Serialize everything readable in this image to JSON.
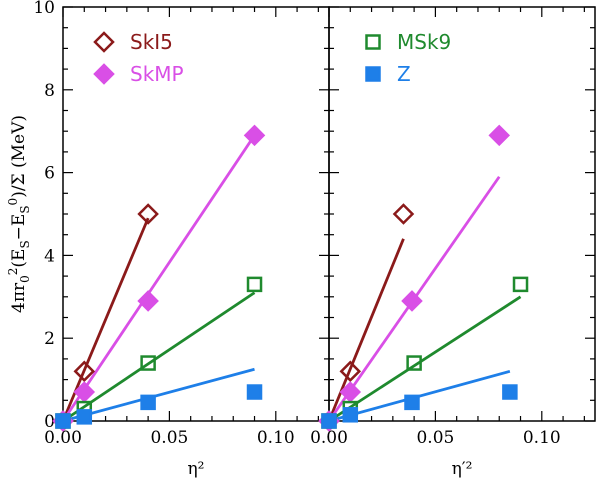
{
  "chart_data": [
    {
      "type": "scatter",
      "panel": "left",
      "xlabel": "η²",
      "ylabel": "4πr₀²(E_S−E_S⁰)/Σ (MeV)",
      "xlim": [
        0.0,
        0.125
      ],
      "ylim": [
        0,
        10
      ],
      "x_ticks": [
        0.0,
        0.05,
        0.1
      ],
      "x_tick_labels": [
        "0.00",
        "0.05",
        "0.10"
      ],
      "y_ticks": [
        0,
        2,
        4,
        6,
        8,
        10
      ],
      "y_tick_labels": [
        "0",
        "2",
        "4",
        "6",
        "8",
        "10"
      ],
      "series": [
        {
          "name": "SkI5",
          "color": "#8b1a1a",
          "marker": "diamond-open",
          "points": [
            [
              0.0,
              0.0
            ],
            [
              0.01,
              1.2
            ],
            [
              0.04,
              5.0
            ]
          ],
          "fit": [
            [
              0.0,
              0.0
            ],
            [
              0.04,
              4.9
            ]
          ]
        },
        {
          "name": "SkMP",
          "color": "#d94fe6",
          "marker": "diamond-filled",
          "points": [
            [
              0.0,
              0.0
            ],
            [
              0.01,
              0.7
            ],
            [
              0.04,
              2.9
            ],
            [
              0.09,
              6.9
            ]
          ],
          "fit": [
            [
              0.0,
              0.0
            ],
            [
              0.09,
              6.9
            ]
          ]
        },
        {
          "name": "MSk9",
          "color": "#1f8a2e",
          "marker": "square-open",
          "points": [
            [
              0.0,
              0.0
            ],
            [
              0.01,
              0.3
            ],
            [
              0.04,
              1.4
            ],
            [
              0.09,
              3.3
            ]
          ],
          "fit": [
            [
              0.0,
              0.0
            ],
            [
              0.09,
              3.1
            ]
          ]
        },
        {
          "name": "Z",
          "color": "#1e7fe8",
          "marker": "square-filled",
          "points": [
            [
              0.0,
              0.0
            ],
            [
              0.01,
              0.1
            ],
            [
              0.04,
              0.45
            ],
            [
              0.09,
              0.7
            ]
          ],
          "fit": [
            [
              0.0,
              0.0
            ],
            [
              0.09,
              1.25
            ]
          ]
        }
      ]
    },
    {
      "type": "scatter",
      "panel": "right",
      "xlabel": "η′²",
      "xlim": [
        0.0,
        0.125
      ],
      "ylim": [
        0,
        10
      ],
      "x_ticks": [
        0.0,
        0.05,
        0.1
      ],
      "x_tick_labels": [
        "0.00",
        "0.05",
        "0.10"
      ],
      "series": [
        {
          "name": "SkI5",
          "color": "#8b1a1a",
          "marker": "diamond-open",
          "points": [
            [
              0.0,
              0.0
            ],
            [
              0.01,
              1.2
            ],
            [
              0.035,
              5.0
            ]
          ],
          "fit": [
            [
              0.0,
              0.0
            ],
            [
              0.035,
              4.4
            ]
          ]
        },
        {
          "name": "SkMP",
          "color": "#d94fe6",
          "marker": "diamond-filled",
          "points": [
            [
              0.0,
              0.0
            ],
            [
              0.01,
              0.7
            ],
            [
              0.039,
              2.9
            ],
            [
              0.08,
              6.9
            ]
          ],
          "fit": [
            [
              0.0,
              0.0
            ],
            [
              0.08,
              5.9
            ]
          ]
        },
        {
          "name": "MSk9",
          "color": "#1f8a2e",
          "marker": "square-open",
          "points": [
            [
              0.0,
              0.0
            ],
            [
              0.01,
              0.3
            ],
            [
              0.04,
              1.4
            ],
            [
              0.09,
              3.3
            ]
          ],
          "fit": [
            [
              0.0,
              0.0
            ],
            [
              0.09,
              3.0
            ]
          ]
        },
        {
          "name": "Z",
          "color": "#1e7fe8",
          "marker": "square-filled",
          "points": [
            [
              0.0,
              0.0
            ],
            [
              0.01,
              0.15
            ],
            [
              0.039,
              0.45
            ],
            [
              0.085,
              0.7
            ]
          ],
          "fit": [
            [
              0.0,
              0.0
            ],
            [
              0.085,
              1.2
            ]
          ]
        }
      ]
    }
  ],
  "legend": {
    "left": [
      {
        "name": "SkI5",
        "color": "#8b1a1a",
        "marker": "diamond-open"
      },
      {
        "name": "SkMP",
        "color": "#d94fe6",
        "marker": "diamond-filled"
      }
    ],
    "right": [
      {
        "name": "MSk9",
        "color": "#1f8a2e",
        "marker": "square-open"
      },
      {
        "name": "Z",
        "color": "#1e7fe8",
        "marker": "square-filled"
      }
    ]
  }
}
